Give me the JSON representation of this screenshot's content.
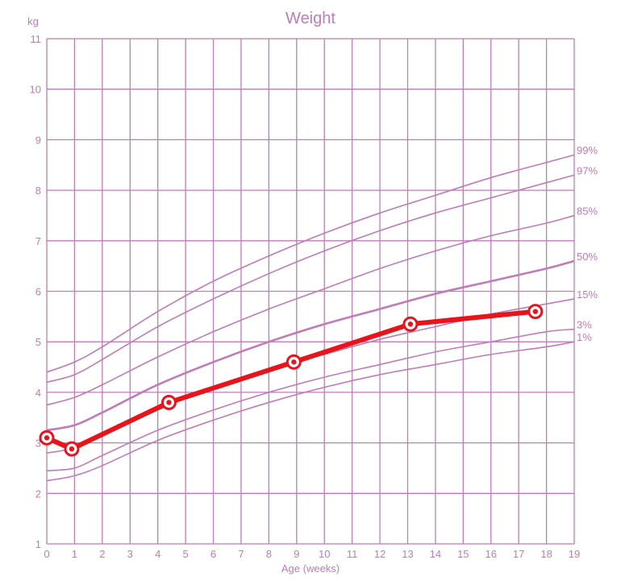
{
  "chart_data": {
    "type": "line",
    "title": "Weight",
    "xlabel": "Age (weeks)",
    "ylabel": "kg",
    "xlim": [
      0,
      19
    ],
    "ylim": [
      1,
      11
    ],
    "x_ticks": [
      0,
      1,
      2,
      3,
      4,
      5,
      6,
      7,
      8,
      9,
      10,
      11,
      12,
      13,
      14,
      15,
      16,
      17,
      18,
      19
    ],
    "y_ticks": [
      1,
      2,
      3,
      4,
      5,
      6,
      7,
      8,
      9,
      10,
      11
    ],
    "grid": true,
    "colors": {
      "grid": "#c07bb8",
      "centile": "#c07bb8",
      "measurement": "#e8141b"
    },
    "centiles": [
      {
        "name": "99%",
        "x": [
          0,
          1,
          2,
          4,
          6,
          8,
          10,
          12,
          14,
          16,
          18,
          19
        ],
        "y": [
          4.4,
          4.6,
          4.9,
          5.6,
          6.2,
          6.7,
          7.15,
          7.55,
          7.9,
          8.25,
          8.55,
          8.7
        ]
      },
      {
        "name": "97%",
        "x": [
          0,
          1,
          2,
          4,
          6,
          8,
          10,
          12,
          14,
          16,
          18,
          19
        ],
        "y": [
          4.2,
          4.35,
          4.65,
          5.3,
          5.85,
          6.35,
          6.8,
          7.2,
          7.55,
          7.85,
          8.15,
          8.3
        ]
      },
      {
        "name": "85%",
        "x": [
          0,
          1,
          2,
          4,
          6,
          8,
          10,
          12,
          14,
          16,
          18,
          19
        ],
        "y": [
          3.75,
          3.9,
          4.15,
          4.7,
          5.2,
          5.65,
          6.05,
          6.45,
          6.8,
          7.1,
          7.35,
          7.5
        ]
      },
      {
        "name": "50%",
        "x": [
          0,
          1,
          2,
          4,
          6,
          8,
          10,
          12,
          14,
          16,
          18,
          19
        ],
        "y": [
          3.25,
          3.35,
          3.6,
          4.15,
          4.6,
          5.0,
          5.35,
          5.65,
          5.95,
          6.2,
          6.45,
          6.6
        ]
      },
      {
        "name": "15%",
        "x": [
          0,
          1,
          2,
          4,
          6,
          8,
          10,
          12,
          14,
          16,
          18,
          19
        ],
        "y": [
          2.8,
          2.9,
          3.15,
          3.65,
          4.1,
          4.45,
          4.75,
          5.05,
          5.3,
          5.55,
          5.75,
          5.85
        ]
      },
      {
        "name": "3%",
        "x": [
          0,
          1,
          2,
          4,
          6,
          8,
          10,
          12,
          14,
          16,
          18,
          19
        ],
        "y": [
          2.45,
          2.5,
          2.75,
          3.25,
          3.65,
          4.0,
          4.3,
          4.55,
          4.8,
          5.0,
          5.2,
          5.25
        ]
      },
      {
        "name": "1%",
        "x": [
          0,
          1,
          2,
          4,
          6,
          8,
          10,
          12,
          14,
          16,
          18,
          19
        ],
        "y": [
          2.25,
          2.35,
          2.55,
          3.05,
          3.45,
          3.8,
          4.1,
          4.35,
          4.55,
          4.75,
          4.9,
          5.0
        ]
      }
    ],
    "measurements": {
      "x": [
        0,
        0.9,
        4.4,
        8.9,
        13.1,
        17.6
      ],
      "y": [
        3.1,
        2.88,
        3.8,
        4.6,
        5.35,
        5.6
      ]
    }
  }
}
